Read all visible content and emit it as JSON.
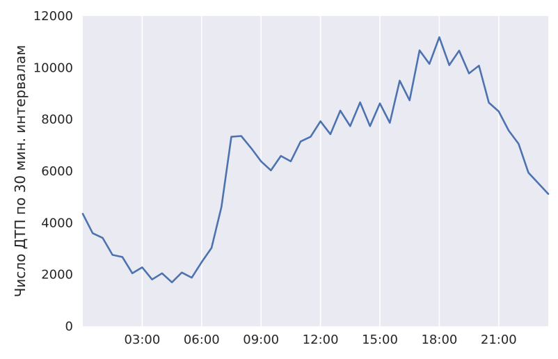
{
  "chart_data": {
    "type": "line",
    "title": "",
    "xlabel": "",
    "ylabel": "Число ДТП по 30 мин. интервалам",
    "grid": true,
    "ylim": [
      0,
      12000
    ],
    "xlim": [
      0,
      23.5
    ],
    "x_ticks": [
      3,
      6,
      9,
      12,
      15,
      18,
      21
    ],
    "x_tick_labels": [
      "03:00",
      "06:00",
      "09:00",
      "12:00",
      "15:00",
      "18:00",
      "21:00"
    ],
    "y_ticks": [
      0,
      2000,
      4000,
      6000,
      8000,
      10000,
      12000
    ],
    "y_tick_labels": [
      "0",
      "2000",
      "4000",
      "6000",
      "8000",
      "10000",
      "12000"
    ],
    "line_color": "#4c72b0",
    "background_color": "#eaeaf2",
    "series": [
      {
        "x": [
          0,
          0.5,
          1,
          1.5,
          2,
          2.5,
          3,
          3.5,
          4,
          4.5,
          5,
          5.5,
          6,
          6.5,
          7,
          7.5,
          8,
          8.5,
          9,
          9.5,
          10,
          10.5,
          11,
          11.5,
          12,
          12.5,
          13,
          13.5,
          14,
          14.5,
          15,
          15.5,
          16,
          16.5,
          17,
          17.5,
          18,
          18.5,
          19,
          19.5,
          20,
          20.5,
          21,
          21.5,
          22,
          22.5,
          23,
          23.5
        ],
        "values": [
          4350,
          3600,
          3420,
          2760,
          2680,
          2050,
          2280,
          1810,
          2050,
          1700,
          2080,
          1880,
          2480,
          3030,
          4620,
          7330,
          7360,
          6890,
          6380,
          6030,
          6590,
          6380,
          7150,
          7330,
          7930,
          7430,
          8340,
          7740,
          8660,
          7740,
          8620,
          7870,
          9500,
          8740,
          10670,
          10150,
          11180,
          10100,
          10660,
          9780,
          10080,
          8650,
          8310,
          7570,
          7060,
          5940,
          5530,
          5120
        ]
      }
    ]
  }
}
